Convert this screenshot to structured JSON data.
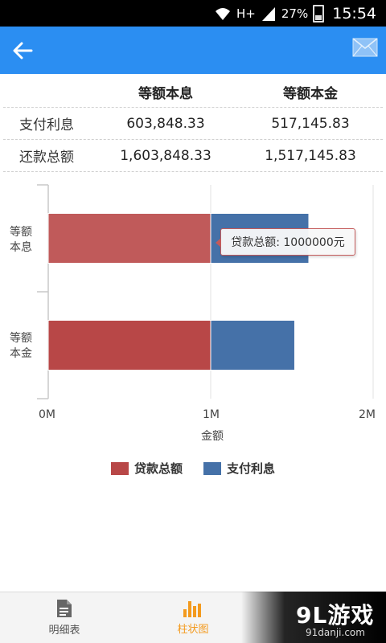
{
  "status_bar": {
    "network": "H+",
    "battery": "27%",
    "time": "15:54"
  },
  "header": {
    "back_icon": "arrow-left-icon",
    "mail_icon": "envelope-icon"
  },
  "table": {
    "columns": [
      "",
      "等额本息",
      "等额本金"
    ],
    "rows": [
      {
        "label": "支付利息",
        "values": [
          "603,848.33",
          "517,145.83"
        ]
      },
      {
        "label": "还款总额",
        "values": [
          "1,603,848.33",
          "1,517,145.83"
        ]
      }
    ]
  },
  "chart_data": {
    "type": "bar",
    "orientation": "horizontal",
    "stacked": true,
    "categories": [
      "等额\n本息",
      "等额\n本金"
    ],
    "series": [
      {
        "name": "贷款总额",
        "color": "#b84747",
        "values": [
          1000000,
          1000000
        ]
      },
      {
        "name": "支付利息",
        "color": "#4571a8",
        "values": [
          603848.33,
          517145.83
        ]
      }
    ],
    "xlabel": "金额",
    "xlim": [
      0,
      2000000
    ],
    "xticks": [
      "0M",
      "1M",
      "2M"
    ],
    "grid": true,
    "legend": "bottom",
    "tooltip": "贷款总额: 1000000元"
  },
  "bottom_nav": {
    "tabs": [
      {
        "label": "明细表",
        "icon": "document-icon",
        "active": false
      },
      {
        "label": "柱状图",
        "icon": "bar-chart-icon",
        "active": true
      }
    ]
  },
  "watermark": {
    "logo": "9L游戏",
    "url": "91danji.com"
  }
}
